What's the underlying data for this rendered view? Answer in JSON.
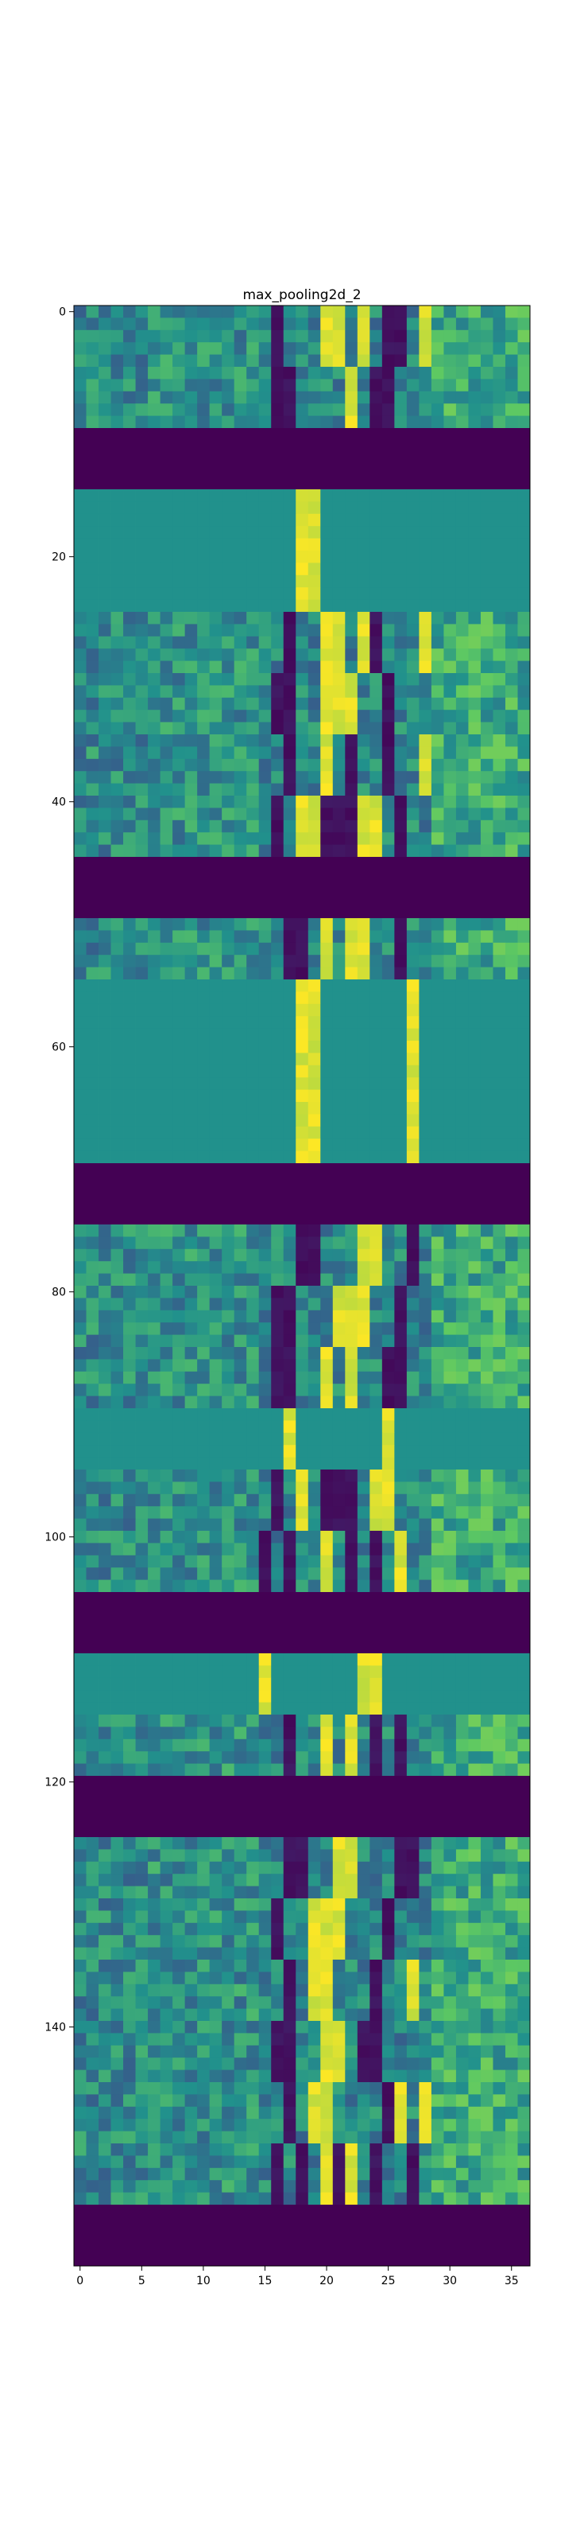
{
  "chart_data": {
    "type": "heatmap",
    "title": "max_pooling2d_2",
    "xlabel": "",
    "ylabel": "",
    "n_cols": 37,
    "n_rows": 160,
    "xlim": [
      -0.5,
      36.5
    ],
    "ylim": [
      159.5,
      -0.5
    ],
    "x_ticks": [
      0,
      5,
      10,
      15,
      20,
      25,
      30,
      35
    ],
    "y_ticks": [
      0,
      20,
      40,
      60,
      80,
      100,
      120,
      140
    ],
    "colormap": "viridis",
    "colors": {
      "zero": "#440154",
      "low": "#3b528b",
      "mid": "#21918c",
      "high": "#5ec962",
      "max": "#fde725"
    },
    "grid": false,
    "bands": [
      {
        "rows": [
          0,
          4
        ],
        "kind": "textured",
        "dark": [
          16,
          25,
          26
        ],
        "bright": [
          20,
          21,
          23,
          28
        ]
      },
      {
        "rows": [
          5,
          9
        ],
        "kind": "textured",
        "dark": [
          16,
          17,
          24,
          25
        ],
        "bright": [
          22
        ]
      },
      {
        "rows": [
          10,
          14
        ],
        "kind": "zero"
      },
      {
        "rows": [
          15,
          24
        ],
        "kind": "flat",
        "bright": [
          18,
          19
        ]
      },
      {
        "rows": [
          25,
          29
        ],
        "kind": "textured",
        "dark": [
          17,
          24
        ],
        "bright": [
          20,
          21,
          23,
          28
        ]
      },
      {
        "rows": [
          30,
          34
        ],
        "kind": "textured",
        "dark": [
          16,
          17,
          25
        ],
        "bright": [
          20,
          21,
          22
        ]
      },
      {
        "rows": [
          35,
          39
        ],
        "kind": "textured",
        "dark": [
          17,
          22,
          25
        ],
        "bright": [
          20,
          28
        ]
      },
      {
        "rows": [
          40,
          44
        ],
        "kind": "textured",
        "dark": [
          16,
          20,
          21,
          22,
          26
        ],
        "bright": [
          18,
          19,
          23,
          24
        ]
      },
      {
        "rows": [
          45,
          49
        ],
        "kind": "zero"
      },
      {
        "rows": [
          50,
          54
        ],
        "kind": "textured",
        "dark": [
          17,
          18,
          26
        ],
        "bright": [
          20,
          22,
          23
        ]
      },
      {
        "rows": [
          55,
          69
        ],
        "kind": "flat",
        "bright": [
          18,
          19,
          27
        ]
      },
      {
        "rows": [
          70,
          74
        ],
        "kind": "zero"
      },
      {
        "rows": [
          75,
          79
        ],
        "kind": "textured",
        "dark": [
          18,
          19,
          27
        ],
        "bright": [
          23,
          24
        ]
      },
      {
        "rows": [
          80,
          84
        ],
        "kind": "textured",
        "dark": [
          16,
          17,
          26
        ],
        "bright": [
          21,
          22,
          23
        ]
      },
      {
        "rows": [
          85,
          89
        ],
        "kind": "textured",
        "dark": [
          16,
          17,
          25,
          26
        ],
        "bright": [
          20,
          22
        ]
      },
      {
        "rows": [
          90,
          94
        ],
        "kind": "flat",
        "bright": [
          17,
          25
        ]
      },
      {
        "rows": [
          95,
          99
        ],
        "kind": "textured",
        "dark": [
          16,
          20,
          21,
          22
        ],
        "bright": [
          18,
          24,
          25
        ]
      },
      {
        "rows": [
          100,
          104
        ],
        "kind": "textured",
        "dark": [
          15,
          17,
          22,
          24
        ],
        "bright": [
          20,
          26
        ]
      },
      {
        "rows": [
          105,
          109
        ],
        "kind": "zero"
      },
      {
        "rows": [
          110,
          114
        ],
        "kind": "flat",
        "bright": [
          15,
          23,
          24
        ]
      },
      {
        "rows": [
          115,
          119
        ],
        "kind": "textured",
        "dark": [
          17,
          24,
          26
        ],
        "bright": [
          20,
          22
        ]
      },
      {
        "rows": [
          120,
          124
        ],
        "kind": "zero"
      },
      {
        "rows": [
          125,
          129
        ],
        "kind": "textured",
        "dark": [
          17,
          18,
          26,
          27
        ],
        "bright": [
          21,
          22
        ]
      },
      {
        "rows": [
          130,
          134
        ],
        "kind": "textured",
        "dark": [
          16,
          25
        ],
        "bright": [
          19,
          20,
          21
        ]
      },
      {
        "rows": [
          135,
          139
        ],
        "kind": "textured",
        "dark": [
          17,
          24
        ],
        "bright": [
          19,
          20,
          27
        ]
      },
      {
        "rows": [
          140,
          144
        ],
        "kind": "textured",
        "dark": [
          16,
          17,
          23,
          24
        ],
        "bright": [
          20,
          21
        ]
      },
      {
        "rows": [
          145,
          149
        ],
        "kind": "textured",
        "dark": [
          17,
          25
        ],
        "bright": [
          19,
          20,
          26,
          28
        ]
      },
      {
        "rows": [
          150,
          154
        ],
        "kind": "textured",
        "dark": [
          16,
          18,
          21,
          24,
          27
        ],
        "bright": [
          20,
          22
        ]
      },
      {
        "rows": [
          155,
          159
        ],
        "kind": "zero"
      }
    ]
  }
}
